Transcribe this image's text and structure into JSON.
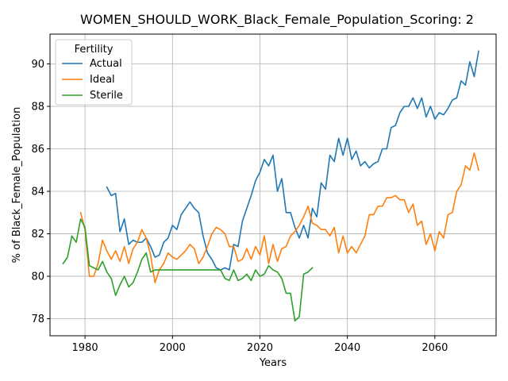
{
  "chart_data": {
    "type": "line",
    "title": "WOMEN_SHOULD_WORK_Black_Female_Population_Scoring: 2",
    "xlabel": "Years",
    "ylabel": "% of Black_Female_Population",
    "xlim": [
      1972,
      2074
    ],
    "ylim": [
      77.2,
      91.4
    ],
    "xticks": [
      1980,
      2000,
      2020,
      2040,
      2060
    ],
    "yticks": [
      78,
      80,
      82,
      84,
      86,
      88,
      90
    ],
    "grid": true,
    "legend": {
      "title": "Fertility",
      "position": "top-left"
    },
    "series": [
      {
        "name": "Actual",
        "color": "#1f77b4",
        "x": [
          1985,
          1986,
          1987,
          1988,
          1989,
          1990,
          1991,
          1992,
          1993,
          1994,
          1995,
          1996,
          1997,
          1998,
          1999,
          2000,
          2001,
          2002,
          2003,
          2004,
          2005,
          2006,
          2007,
          2008,
          2009,
          2010,
          2011,
          2012,
          2013,
          2014,
          2015,
          2016,
          2017,
          2018,
          2019,
          2020,
          2021,
          2022,
          2023,
          2024,
          2025,
          2026,
          2027,
          2028,
          2029,
          2030,
          2031,
          2032,
          2033,
          2034,
          2035,
          2036,
          2037,
          2038,
          2039,
          2040,
          2041,
          2042,
          2043,
          2044,
          2045,
          2046,
          2047,
          2048,
          2049,
          2050,
          2051,
          2052,
          2053,
          2054,
          2055,
          2056,
          2057,
          2058,
          2059,
          2060,
          2061,
          2062,
          2063,
          2064,
          2065,
          2066,
          2067,
          2068,
          2069,
          2070
        ],
        "y": [
          84.2,
          83.8,
          83.9,
          82.1,
          82.7,
          81.5,
          81.7,
          81.6,
          81.6,
          81.8,
          81.4,
          80.9,
          81.0,
          81.6,
          81.8,
          82.4,
          82.2,
          82.9,
          83.2,
          83.5,
          83.2,
          83.0,
          81.9,
          81.1,
          80.8,
          80.4,
          80.3,
          80.4,
          80.3,
          81.5,
          81.4,
          82.6,
          83.2,
          83.8,
          84.5,
          84.9,
          85.5,
          85.2,
          85.7,
          84.0,
          84.6,
          83.0,
          83.0,
          82.3,
          81.8,
          82.4,
          81.8,
          83.2,
          82.8,
          84.4,
          84.1,
          85.7,
          85.4,
          86.5,
          85.7,
          86.5,
          85.5,
          85.9,
          85.2,
          85.4,
          85.1,
          85.3,
          85.4,
          86.0,
          86.0,
          87.0,
          87.1,
          87.7,
          88.0,
          88.0,
          88.4,
          87.9,
          88.4,
          87.5,
          88.0,
          87.4,
          87.7,
          87.6,
          87.9,
          88.3,
          88.4,
          89.2,
          89.0,
          90.1,
          89.4,
          90.6
        ]
      },
      {
        "name": "Ideal",
        "color": "#ff7f0e",
        "x": [
          1979,
          1980,
          1981,
          1982,
          1983,
          1984,
          1985,
          1986,
          1987,
          1988,
          1989,
          1990,
          1991,
          1992,
          1993,
          1994,
          1995,
          1996,
          1997,
          1998,
          1999,
          2000,
          2001,
          2002,
          2003,
          2004,
          2005,
          2006,
          2007,
          2008,
          2009,
          2010,
          2011,
          2012,
          2013,
          2014,
          2015,
          2016,
          2017,
          2018,
          2019,
          2020,
          2021,
          2022,
          2023,
          2024,
          2025,
          2026,
          2027,
          2028,
          2029,
          2030,
          2031,
          2032,
          2033,
          2034,
          2035,
          2036,
          2037,
          2038,
          2039,
          2040,
          2041,
          2042,
          2043,
          2044,
          2045,
          2046,
          2047,
          2048,
          2049,
          2050,
          2051,
          2052,
          2053,
          2054,
          2055,
          2056,
          2057,
          2058,
          2059,
          2060,
          2061,
          2062,
          2063,
          2064,
          2065,
          2066,
          2067,
          2068,
          2069,
          2070
        ],
        "y": [
          83.0,
          82.2,
          80.0,
          80.0,
          80.6,
          81.7,
          81.2,
          80.8,
          81.2,
          80.7,
          81.4,
          80.6,
          81.3,
          81.6,
          82.2,
          81.8,
          81.0,
          79.7,
          80.3,
          80.6,
          81.1,
          80.9,
          80.8,
          81.0,
          81.2,
          81.5,
          81.3,
          80.6,
          80.9,
          81.4,
          82.0,
          82.3,
          82.2,
          82.0,
          81.4,
          81.4,
          80.7,
          80.8,
          81.3,
          80.8,
          81.4,
          81.0,
          81.9,
          80.6,
          81.5,
          80.7,
          81.3,
          81.4,
          81.9,
          82.1,
          82.4,
          82.8,
          83.3,
          82.5,
          82.4,
          82.2,
          82.2,
          81.9,
          82.3,
          81.1,
          81.9,
          81.1,
          81.4,
          81.1,
          81.5,
          81.9,
          82.9,
          82.9,
          83.3,
          83.3,
          83.7,
          83.7,
          83.8,
          83.6,
          83.6,
          83.0,
          83.4,
          82.4,
          82.6,
          81.5,
          82.0,
          81.2,
          82.1,
          81.8,
          82.9,
          83.0,
          84.0,
          84.3,
          85.2,
          85.0,
          85.8,
          85.0
        ]
      },
      {
        "name": "Sterile",
        "color": "#2ca02c",
        "x": [
          1975,
          1976,
          1977,
          1978,
          1979,
          1980,
          1981,
          1982,
          1983,
          1984,
          1985,
          1986,
          1987,
          1988,
          1989,
          1990,
          1991,
          1992,
          1993,
          1994,
          1995,
          1996,
          1997,
          1998,
          1999,
          2000,
          2001,
          2002,
          2003,
          2004,
          2005,
          2006,
          2007,
          2008,
          2009,
          2010,
          2011,
          2012,
          2013,
          2014,
          2015,
          2016,
          2017,
          2018,
          2019,
          2020,
          2021,
          2022,
          2023,
          2024,
          2025,
          2026,
          2027,
          2028,
          2029,
          2030,
          2031,
          2032
        ],
        "y": [
          80.6,
          80.9,
          81.9,
          81.6,
          82.7,
          82.3,
          80.5,
          80.4,
          80.3,
          80.7,
          80.2,
          79.9,
          79.1,
          79.6,
          80.0,
          79.5,
          79.7,
          80.2,
          80.8,
          81.1,
          80.2,
          80.3,
          80.3,
          80.3,
          80.3,
          80.3,
          80.3,
          80.3,
          80.3,
          80.3,
          80.3,
          80.3,
          80.3,
          80.3,
          80.3,
          80.3,
          80.3,
          79.9,
          79.8,
          80.3,
          79.8,
          79.9,
          80.1,
          79.8,
          80.3,
          80.0,
          80.1,
          80.5,
          80.3,
          80.2,
          79.9,
          79.2,
          79.2,
          77.9,
          78.1,
          80.1,
          80.2,
          80.4
        ]
      }
    ]
  }
}
